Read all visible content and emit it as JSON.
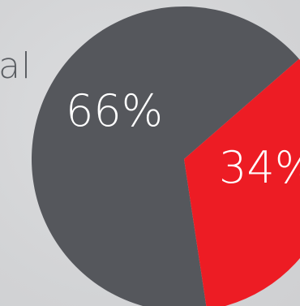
{
  "left_label_fragment": "al",
  "chart_data": {
    "type": "pie",
    "slices": [
      {
        "label": "66%",
        "value": 66,
        "color": "#55575c"
      },
      {
        "label": "34%",
        "value": 34,
        "color": "#ed1c24"
      }
    ],
    "title": "",
    "legend": "none"
  }
}
